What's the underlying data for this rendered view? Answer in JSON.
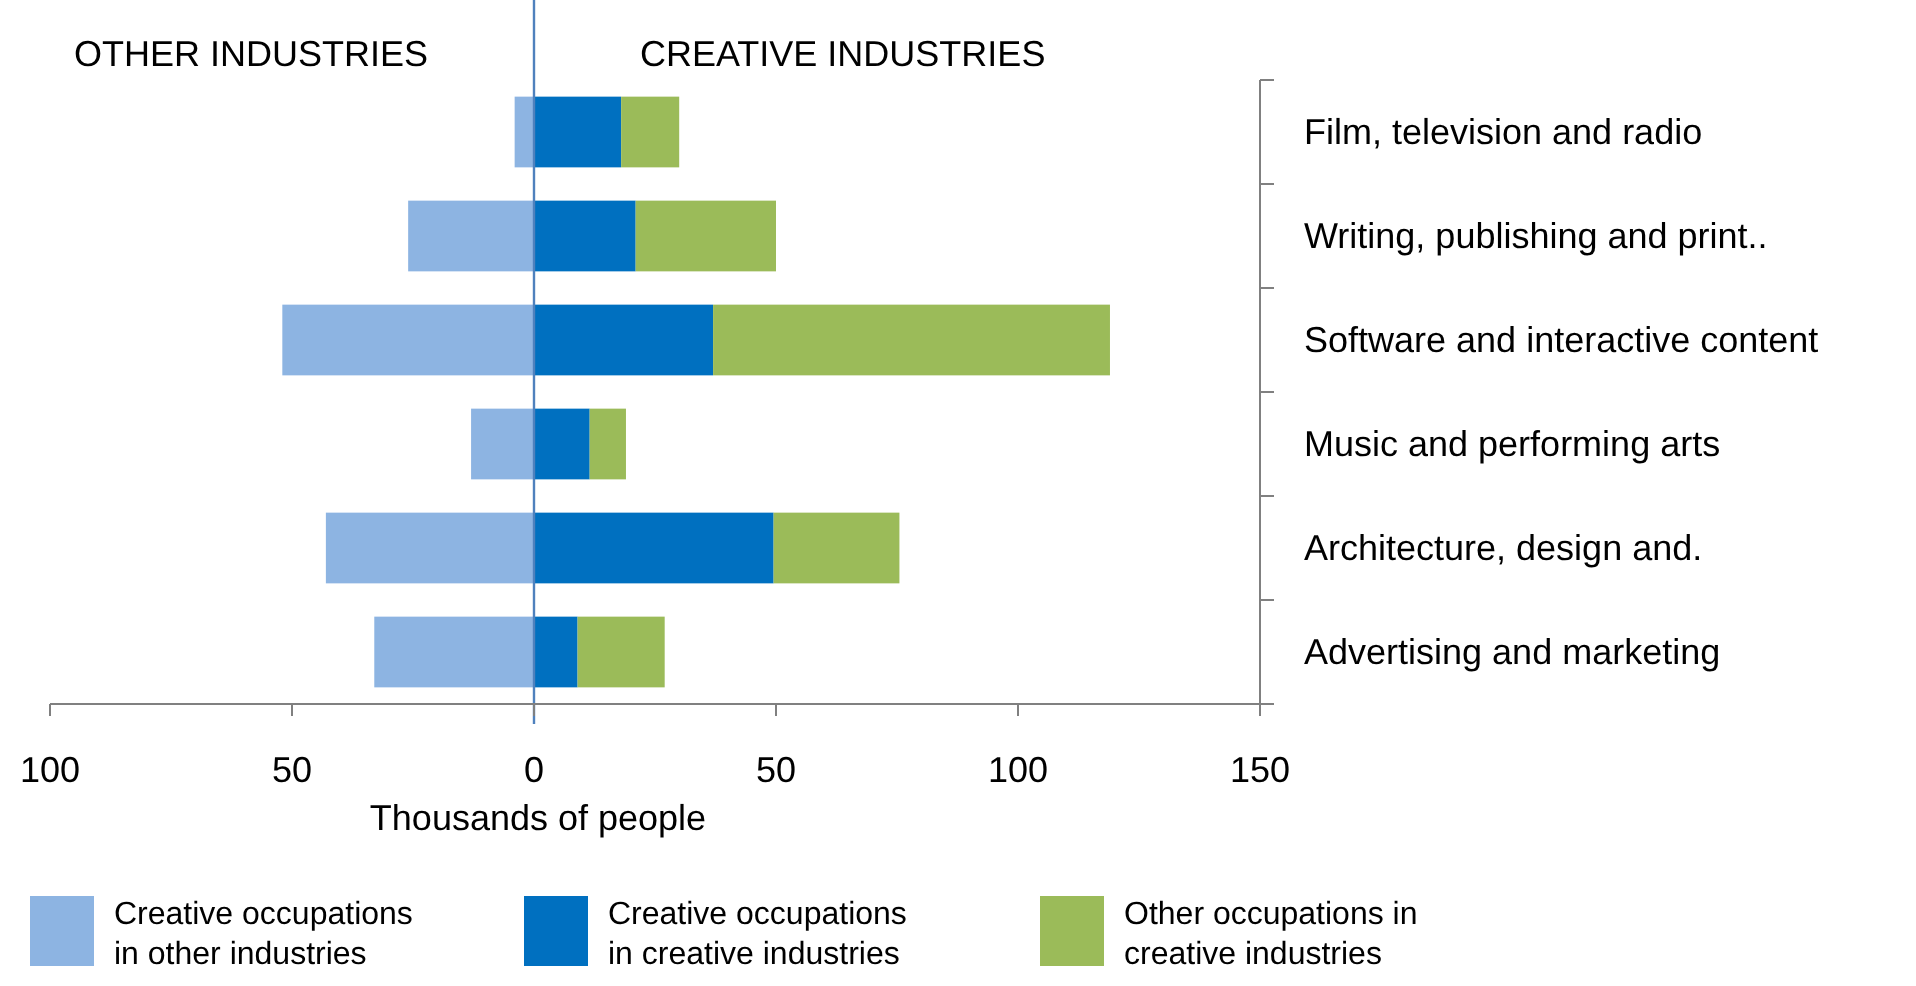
{
  "chart_data": {
    "type": "bar",
    "orientation": "horizontal",
    "stacked": true,
    "categories": [
      "Film, television and radio",
      "Writing, publishing and print..",
      "Software and interactive content",
      "Music and performing arts",
      "Architecture, design and.",
      "Advertising and marketing"
    ],
    "series": [
      {
        "name": "Creative occupations in other industries",
        "color": "#8db4e2",
        "values": [
          -4,
          -26,
          -52,
          -13,
          -43,
          -33
        ]
      },
      {
        "name": "Creative occupations in creative industries",
        "color": "#0070c0",
        "values": [
          18,
          21,
          37,
          11.5,
          49.5,
          9
        ]
      },
      {
        "name": "Other  occupations in creative industries",
        "color": "#9bbb59",
        "values": [
          12,
          29,
          82,
          7.5,
          26,
          18
        ]
      }
    ],
    "xlim": [
      -100,
      150
    ],
    "xticks": [
      {
        "value": -100,
        "label": "100"
      },
      {
        "value": -50,
        "label": "50"
      },
      0,
      50,
      100,
      150
    ],
    "xlabel": "Thousands of people",
    "annotations": [
      "OTHER INDUSTRIES",
      "CREATIVE INDUSTRIES"
    ],
    "ref_lines": [
      {
        "axis": "x",
        "value": 0,
        "color": "#4f81bd"
      }
    ],
    "grid": false,
    "legend": "bottom"
  }
}
